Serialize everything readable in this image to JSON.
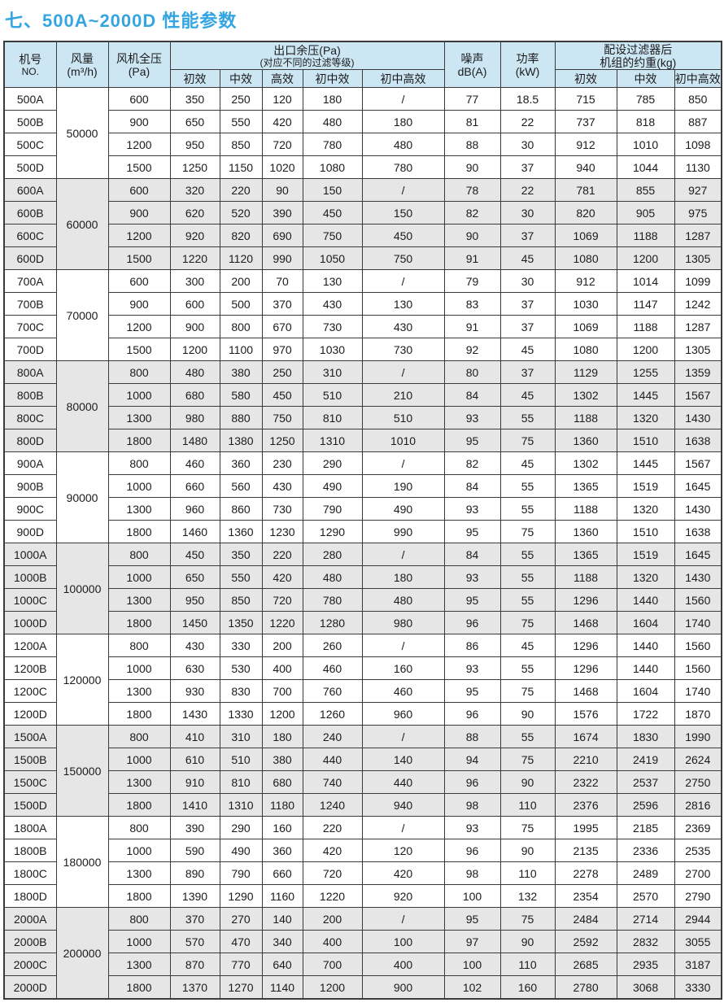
{
  "page": {
    "title": "七、500A~2000D 性能参数"
  },
  "colors": {
    "title_accent": "#35a5e2",
    "header_bg": "#cde6f4",
    "shaded_group_bg": "#e6e6e6",
    "border": "#3a3a3a"
  },
  "table": {
    "header": {
      "model": {
        "line1": "机号",
        "line2": "NO."
      },
      "airflow": {
        "line1": "风量",
        "line2": "(m³/h)"
      },
      "fan_pressure": {
        "line1": "风机全压",
        "line2": "(Pa)"
      },
      "outlet_pressure": {
        "line1": "出口余压(Pa)",
        "line2": "(对应不同的过滤等级)"
      },
      "outlet_sub": [
        "初效",
        "中效",
        "高效",
        "初中效",
        "初中高效"
      ],
      "noise": {
        "line1": "噪声",
        "line2": "dB(A)"
      },
      "power": {
        "line1": "功率",
        "line2": "(kW)"
      },
      "weight": {
        "line1": "配设过滤器后",
        "line2": "机组的约重(kg)"
      },
      "weight_sub": [
        "初效",
        "中效",
        "初中高效"
      ]
    },
    "value_columns": [
      "fan_total_pressure",
      "outlet_primary",
      "outlet_medium",
      "outlet_hepa",
      "outlet_primary_medium",
      "outlet_primary_medium_hepa",
      "noise_dba",
      "power_kw",
      "weight_primary",
      "weight_medium",
      "weight_primary_medium_hepa"
    ],
    "groups": [
      {
        "airflow": "50000",
        "rows": [
          {
            "model": "500A",
            "values": [
              "600",
              "350",
              "250",
              "120",
              "180",
              "/",
              "77",
              "18.5",
              "715",
              "785",
              "850"
            ]
          },
          {
            "model": "500B",
            "values": [
              "900",
              "650",
              "550",
              "420",
              "480",
              "180",
              "81",
              "22",
              "737",
              "818",
              "887"
            ]
          },
          {
            "model": "500C",
            "values": [
              "1200",
              "950",
              "850",
              "720",
              "780",
              "480",
              "88",
              "30",
              "912",
              "1010",
              "1098"
            ]
          },
          {
            "model": "500D",
            "values": [
              "1500",
              "1250",
              "1150",
              "1020",
              "1080",
              "780",
              "90",
              "37",
              "940",
              "1044",
              "1130"
            ]
          }
        ]
      },
      {
        "airflow": "60000",
        "rows": [
          {
            "model": "600A",
            "values": [
              "600",
              "320",
              "220",
              "90",
              "150",
              "/",
              "78",
              "22",
              "781",
              "855",
              "927"
            ]
          },
          {
            "model": "600B",
            "values": [
              "900",
              "620",
              "520",
              "390",
              "450",
              "150",
              "82",
              "30",
              "820",
              "905",
              "975"
            ]
          },
          {
            "model": "600C",
            "values": [
              "1200",
              "920",
              "820",
              "690",
              "750",
              "450",
              "90",
              "37",
              "1069",
              "1188",
              "1287"
            ]
          },
          {
            "model": "600D",
            "values": [
              "1500",
              "1220",
              "1120",
              "990",
              "1050",
              "750",
              "91",
              "45",
              "1080",
              "1200",
              "1305"
            ]
          }
        ]
      },
      {
        "airflow": "70000",
        "rows": [
          {
            "model": "700A",
            "values": [
              "600",
              "300",
              "200",
              "70",
              "130",
              "/",
              "79",
              "30",
              "912",
              "1014",
              "1099"
            ]
          },
          {
            "model": "700B",
            "values": [
              "900",
              "600",
              "500",
              "370",
              "430",
              "130",
              "83",
              "37",
              "1030",
              "1147",
              "1242"
            ]
          },
          {
            "model": "700C",
            "values": [
              "1200",
              "900",
              "800",
              "670",
              "730",
              "430",
              "91",
              "37",
              "1069",
              "1188",
              "1287"
            ]
          },
          {
            "model": "700D",
            "values": [
              "1500",
              "1200",
              "1100",
              "970",
              "1030",
              "730",
              "92",
              "45",
              "1080",
              "1200",
              "1305"
            ]
          }
        ]
      },
      {
        "airflow": "80000",
        "rows": [
          {
            "model": "800A",
            "values": [
              "800",
              "480",
              "380",
              "250",
              "310",
              "/",
              "80",
              "37",
              "1129",
              "1255",
              "1359"
            ]
          },
          {
            "model": "800B",
            "values": [
              "1000",
              "680",
              "580",
              "450",
              "510",
              "210",
              "84",
              "45",
              "1302",
              "1445",
              "1567"
            ]
          },
          {
            "model": "800C",
            "values": [
              "1300",
              "980",
              "880",
              "750",
              "810",
              "510",
              "93",
              "55",
              "1188",
              "1320",
              "1430"
            ]
          },
          {
            "model": "800D",
            "values": [
              "1800",
              "1480",
              "1380",
              "1250",
              "1310",
              "1010",
              "95",
              "75",
              "1360",
              "1510",
              "1638"
            ]
          }
        ]
      },
      {
        "airflow": "90000",
        "rows": [
          {
            "model": "900A",
            "values": [
              "800",
              "460",
              "360",
              "230",
              "290",
              "/",
              "82",
              "45",
              "1302",
              "1445",
              "1567"
            ]
          },
          {
            "model": "900B",
            "values": [
              "1000",
              "660",
              "560",
              "430",
              "490",
              "190",
              "84",
              "55",
              "1365",
              "1519",
              "1645"
            ]
          },
          {
            "model": "900C",
            "values": [
              "1300",
              "960",
              "860",
              "730",
              "790",
              "490",
              "93",
              "55",
              "1188",
              "1320",
              "1430"
            ]
          },
          {
            "model": "900D",
            "values": [
              "1800",
              "1460",
              "1360",
              "1230",
              "1290",
              "990",
              "95",
              "75",
              "1360",
              "1510",
              "1638"
            ]
          }
        ]
      },
      {
        "airflow": "100000",
        "rows": [
          {
            "model": "1000A",
            "values": [
              "800",
              "450",
              "350",
              "220",
              "280",
              "/",
              "84",
              "55",
              "1365",
              "1519",
              "1645"
            ]
          },
          {
            "model": "1000B",
            "values": [
              "1000",
              "650",
              "550",
              "420",
              "480",
              "180",
              "93",
              "55",
              "1188",
              "1320",
              "1430"
            ]
          },
          {
            "model": "1000C",
            "values": [
              "1300",
              "950",
              "850",
              "720",
              "780",
              "480",
              "95",
              "55",
              "1296",
              "1440",
              "1560"
            ]
          },
          {
            "model": "1000D",
            "values": [
              "1800",
              "1450",
              "1350",
              "1220",
              "1280",
              "980",
              "96",
              "75",
              "1468",
              "1604",
              "1740"
            ]
          }
        ]
      },
      {
        "airflow": "120000",
        "rows": [
          {
            "model": "1200A",
            "values": [
              "800",
              "430",
              "330",
              "200",
              "260",
              "/",
              "86",
              "45",
              "1296",
              "1440",
              "1560"
            ]
          },
          {
            "model": "1200B",
            "values": [
              "1000",
              "630",
              "530",
              "400",
              "460",
              "160",
              "93",
              "55",
              "1296",
              "1440",
              "1560"
            ]
          },
          {
            "model": "1200C",
            "values": [
              "1300",
              "930",
              "830",
              "700",
              "760",
              "460",
              "95",
              "75",
              "1468",
              "1604",
              "1740"
            ]
          },
          {
            "model": "1200D",
            "values": [
              "1800",
              "1430",
              "1330",
              "1200",
              "1260",
              "960",
              "96",
              "90",
              "1576",
              "1722",
              "1870"
            ]
          }
        ]
      },
      {
        "airflow": "150000",
        "rows": [
          {
            "model": "1500A",
            "values": [
              "800",
              "410",
              "310",
              "180",
              "240",
              "/",
              "88",
              "55",
              "1674",
              "1830",
              "1990"
            ]
          },
          {
            "model": "1500B",
            "values": [
              "1000",
              "610",
              "510",
              "380",
              "440",
              "140",
              "94",
              "75",
              "2210",
              "2419",
              "2624"
            ]
          },
          {
            "model": "1500C",
            "values": [
              "1300",
              "910",
              "810",
              "680",
              "740",
              "440",
              "96",
              "90",
              "2322",
              "2537",
              "2750"
            ]
          },
          {
            "model": "1500D",
            "values": [
              "1800",
              "1410",
              "1310",
              "1180",
              "1240",
              "940",
              "98",
              "110",
              "2376",
              "2596",
              "2816"
            ]
          }
        ]
      },
      {
        "airflow": "180000",
        "rows": [
          {
            "model": "1800A",
            "values": [
              "800",
              "390",
              "290",
              "160",
              "220",
              "/",
              "93",
              "75",
              "1995",
              "2185",
              "2369"
            ]
          },
          {
            "model": "1800B",
            "values": [
              "1000",
              "590",
              "490",
              "360",
              "420",
              "120",
              "96",
              "90",
              "2135",
              "2336",
              "2535"
            ]
          },
          {
            "model": "1800C",
            "values": [
              "1300",
              "890",
              "790",
              "660",
              "720",
              "420",
              "98",
              "110",
              "2278",
              "2489",
              "2700"
            ]
          },
          {
            "model": "1800D",
            "values": [
              "1800",
              "1390",
              "1290",
              "1160",
              "1220",
              "920",
              "100",
              "132",
              "2354",
              "2570",
              "2790"
            ]
          }
        ]
      },
      {
        "airflow": "200000",
        "rows": [
          {
            "model": "2000A",
            "values": [
              "800",
              "370",
              "270",
              "140",
              "200",
              "/",
              "95",
              "75",
              "2484",
              "2714",
              "2944"
            ]
          },
          {
            "model": "2000B",
            "values": [
              "1000",
              "570",
              "470",
              "340",
              "400",
              "100",
              "97",
              "90",
              "2592",
              "2832",
              "3055"
            ]
          },
          {
            "model": "2000C",
            "values": [
              "1300",
              "870",
              "770",
              "640",
              "700",
              "400",
              "100",
              "110",
              "2685",
              "2935",
              "3187"
            ]
          },
          {
            "model": "2000D",
            "values": [
              "1800",
              "1370",
              "1270",
              "1140",
              "1200",
              "900",
              "102",
              "160",
              "2780",
              "3068",
              "3330"
            ]
          }
        ]
      }
    ]
  }
}
